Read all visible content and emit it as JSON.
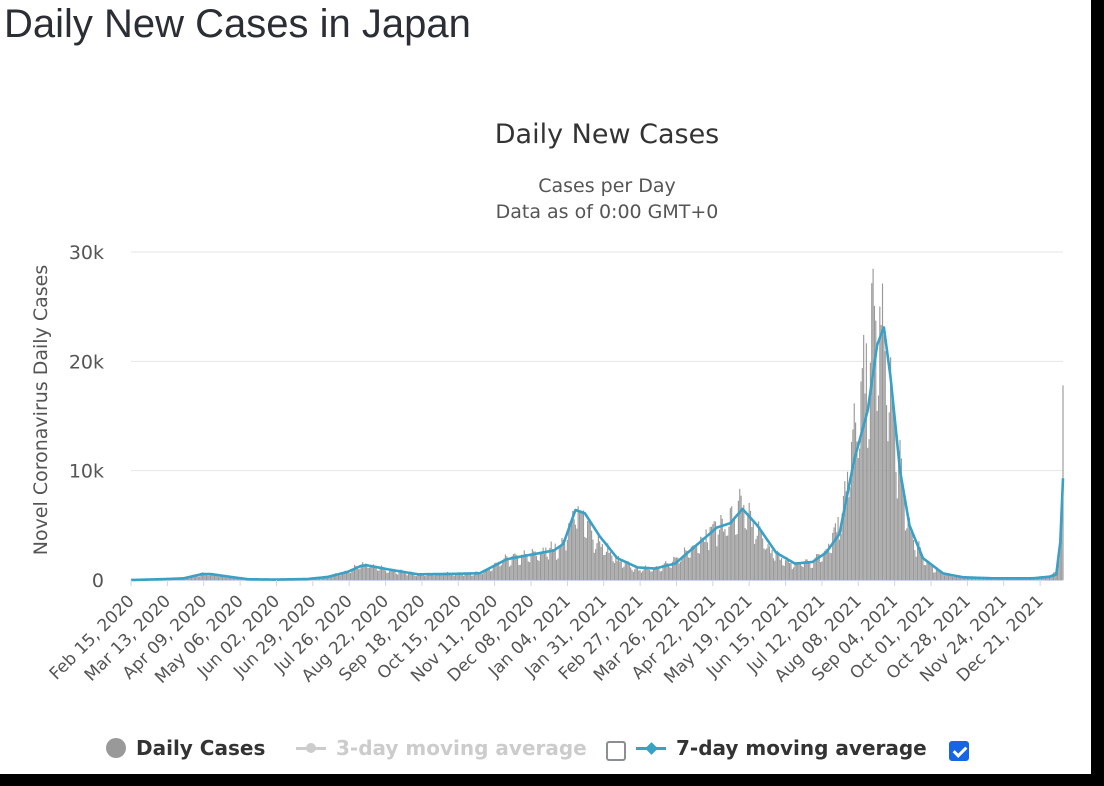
{
  "page": {
    "heading": "Daily New Cases in Japan"
  },
  "chart_data": {
    "type": "bar",
    "title": "Daily New Cases",
    "subtitle": [
      "Cases per Day",
      "Data as of 0:00 GMT+0"
    ],
    "ylabel": "Novel Coronavirus Daily Cases",
    "xlabel": "",
    "ylim": [
      0,
      30000
    ],
    "y_ticks": [
      {
        "value": 0,
        "label": "0"
      },
      {
        "value": 10000,
        "label": "10k"
      },
      {
        "value": 20000,
        "label": "20k"
      },
      {
        "value": 30000,
        "label": "30k"
      }
    ],
    "x_start": "2020-02-15",
    "x_end": "2022-01-07",
    "x_tick_labels": [
      "Feb 15, 2020",
      "Mar 13, 2020",
      "Apr 09, 2020",
      "May 06, 2020",
      "Jun 02, 2020",
      "Jun 29, 2020",
      "Jul 26, 2020",
      "Aug 22, 2020",
      "Sep 18, 2020",
      "Oct 15, 2020",
      "Nov 11, 2020",
      "Dec 08, 2020",
      "Jan 04, 2021",
      "Jan 31, 2021",
      "Feb 27, 2021",
      "Mar 26, 2021",
      "Apr 22, 2021",
      "May 19, 2021",
      "Jun 15, 2021",
      "Jul 12, 2021",
      "Aug 08, 2021",
      "Sep 04, 2021",
      "Oct 01, 2021",
      "Oct 28, 2021",
      "Nov 24, 2021",
      "Dec 21, 2021"
    ],
    "grid": true,
    "series": [
      {
        "name": "Daily Cases",
        "kind": "bar",
        "color": "#999999",
        "approx_daily_values_from_key_points": [
          [
            "2020-02-15",
            10
          ],
          [
            "2020-03-10",
            60
          ],
          [
            "2020-03-28",
            200
          ],
          [
            "2020-04-11",
            650
          ],
          [
            "2020-04-25",
            300
          ],
          [
            "2020-05-10",
            80
          ],
          [
            "2020-05-31",
            40
          ],
          [
            "2020-06-25",
            90
          ],
          [
            "2020-07-10",
            300
          ],
          [
            "2020-07-25",
            800
          ],
          [
            "2020-08-07",
            1500
          ],
          [
            "2020-08-25",
            900
          ],
          [
            "2020-09-15",
            550
          ],
          [
            "2020-10-15",
            600
          ],
          [
            "2020-11-01",
            650
          ],
          [
            "2020-11-20",
            1900
          ],
          [
            "2020-12-10",
            2300
          ],
          [
            "2020-12-25",
            2900
          ],
          [
            "2021-01-01",
            3300
          ],
          [
            "2021-01-09",
            6500
          ],
          [
            "2021-01-13",
            6200
          ],
          [
            "2021-01-25",
            3800
          ],
          [
            "2021-02-10",
            1800
          ],
          [
            "2021-02-25",
            1000
          ],
          [
            "2021-03-10",
            1100
          ],
          [
            "2021-03-25",
            1700
          ],
          [
            "2021-04-10",
            3500
          ],
          [
            "2021-04-25",
            5000
          ],
          [
            "2021-05-05",
            5300
          ],
          [
            "2021-05-12",
            6700
          ],
          [
            "2021-05-25",
            4500
          ],
          [
            "2021-06-08",
            2200
          ],
          [
            "2021-06-20",
            1500
          ],
          [
            "2021-07-05",
            1700
          ],
          [
            "2021-07-15",
            2800
          ],
          [
            "2021-07-25",
            5500
          ],
          [
            "2021-08-05",
            13000
          ],
          [
            "2021-08-15",
            19500
          ],
          [
            "2021-08-20",
            23500
          ],
          [
            "2021-08-25",
            23000
          ],
          [
            "2021-09-01",
            17000
          ],
          [
            "2021-09-10",
            8000
          ],
          [
            "2021-09-18",
            3500
          ],
          [
            "2021-10-01",
            1200
          ],
          [
            "2021-10-15",
            400
          ],
          [
            "2021-11-01",
            200
          ],
          [
            "2021-12-01",
            120
          ],
          [
            "2021-12-25",
            300
          ],
          [
            "2021-12-30",
            500
          ],
          [
            "2022-01-03",
            1000
          ],
          [
            "2022-01-05",
            4000
          ],
          [
            "2022-01-06",
            8000
          ],
          [
            "2022-01-07",
            17800
          ]
        ]
      },
      {
        "name": "3-day moving average",
        "kind": "line",
        "color": "#cccccc",
        "visible": false
      },
      {
        "name": "7-day moving average",
        "kind": "line",
        "color": "#39a0c6",
        "visible": true,
        "points": [
          [
            "2020-02-15",
            0
          ],
          [
            "2020-03-10",
            80
          ],
          [
            "2020-03-25",
            150
          ],
          [
            "2020-04-08",
            550
          ],
          [
            "2020-04-14",
            550
          ],
          [
            "2020-04-28",
            300
          ],
          [
            "2020-05-12",
            70
          ],
          [
            "2020-06-01",
            40
          ],
          [
            "2020-06-25",
            90
          ],
          [
            "2020-07-10",
            280
          ],
          [
            "2020-07-25",
            750
          ],
          [
            "2020-08-04",
            1300
          ],
          [
            "2020-08-08",
            1350
          ],
          [
            "2020-08-25",
            950
          ],
          [
            "2020-09-15",
            520
          ],
          [
            "2020-10-10",
            560
          ],
          [
            "2020-10-31",
            620
          ],
          [
            "2020-11-20",
            1900
          ],
          [
            "2020-12-05",
            2250
          ],
          [
            "2020-12-25",
            2700
          ],
          [
            "2021-01-01",
            3300
          ],
          [
            "2021-01-10",
            6400
          ],
          [
            "2021-01-17",
            6100
          ],
          [
            "2021-01-28",
            4000
          ],
          [
            "2021-02-10",
            2000
          ],
          [
            "2021-02-25",
            1150
          ],
          [
            "2021-03-10",
            1050
          ],
          [
            "2021-03-25",
            1500
          ],
          [
            "2021-04-10",
            3200
          ],
          [
            "2021-04-25",
            4800
          ],
          [
            "2021-05-05",
            5200
          ],
          [
            "2021-05-14",
            6500
          ],
          [
            "2021-05-25",
            5000
          ],
          [
            "2021-06-08",
            2500
          ],
          [
            "2021-06-22",
            1500
          ],
          [
            "2021-07-05",
            1650
          ],
          [
            "2021-07-15",
            2500
          ],
          [
            "2021-07-25",
            4200
          ],
          [
            "2021-08-05",
            11000
          ],
          [
            "2021-08-15",
            15500
          ],
          [
            "2021-08-22",
            21500
          ],
          [
            "2021-08-27",
            23100
          ],
          [
            "2021-09-01",
            18500
          ],
          [
            "2021-09-08",
            10000
          ],
          [
            "2021-09-15",
            5000
          ],
          [
            "2021-09-25",
            2000
          ],
          [
            "2021-10-10",
            600
          ],
          [
            "2021-10-25",
            250
          ],
          [
            "2021-11-15",
            160
          ],
          [
            "2021-12-15",
            150
          ],
          [
            "2021-12-28",
            300
          ],
          [
            "2022-01-02",
            500
          ],
          [
            "2022-01-05",
            3500
          ],
          [
            "2022-01-07",
            9300
          ]
        ]
      }
    ],
    "legend": {
      "placement": "bottom",
      "items": [
        {
          "label": "Daily Cases",
          "color": "#999999",
          "marker": "circle",
          "checkbox": null
        },
        {
          "label": "3-day moving average",
          "color": "#cccccc",
          "marker": "circle-line",
          "checkbox": false
        },
        {
          "label": "7-day moving average",
          "color": "#39a0c6",
          "marker": "diamond-line",
          "checkbox": true
        }
      ]
    },
    "colors": {
      "title": "#333333",
      "subtitle": "#555555",
      "axis_text": "#555555",
      "grid": "#e6e6e6",
      "checkbox_checked": "#1565e6"
    }
  }
}
